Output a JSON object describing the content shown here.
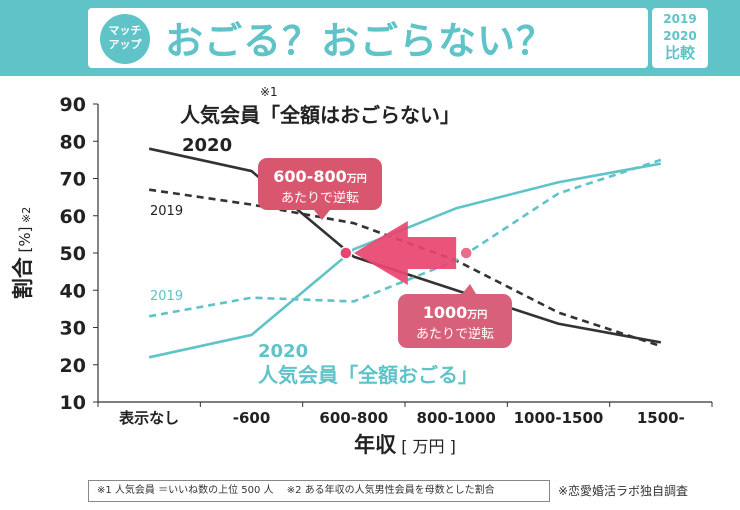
{
  "header": {
    "logo_line1": "マッチ",
    "logo_line2": "アップ",
    "title": "おごる？おごらない？",
    "year1": "2019",
    "year2": "2020",
    "compare": "比較"
  },
  "footnote": "※1 人気会員 ＝いいね数の上位 500 人　 ※2 ある年収の人気男性会員を母数とした割合",
  "source": "※恋愛婚活ラボ独自調査",
  "colors": {
    "black_series": "#333333",
    "teal_series": "#5fc3c8",
    "highlight": "#e8456f",
    "callout_pink": "#d9566f"
  },
  "chart_data": {
    "type": "line",
    "categories": [
      "表示なし",
      "-600",
      "600-800",
      "800-1000",
      "1000-1500",
      "1500-"
    ],
    "xlabel": "年収",
    "xlabel_unit": "[ 万円 ]",
    "ylabel": "割合",
    "ylabel_unit": "[%]",
    "ylabel_note": "※2",
    "ylim": [
      10,
      90
    ],
    "yticks": [
      10,
      20,
      30,
      40,
      50,
      60,
      70,
      80,
      90
    ],
    "groups": [
      {
        "title": "人気会員「全額はおごらない」",
        "title_note": "※1",
        "color": "#333333",
        "series": [
          {
            "name": "2020",
            "style": "solid",
            "values": [
              78,
              72,
              49,
              40,
              31,
              26
            ]
          },
          {
            "name": "2019",
            "style": "dashed",
            "values": [
              67,
              63,
              58,
              48,
              34,
              25
            ]
          }
        ]
      },
      {
        "title": "人気会員「全額おごる」",
        "color": "#5fc3c8",
        "series": [
          {
            "name": "2020",
            "style": "solid",
            "values": [
              22,
              28,
              51,
              62,
              69,
              74
            ]
          },
          {
            "name": "2019",
            "style": "dashed",
            "values": [
              33,
              38,
              37,
              48,
              66,
              75
            ]
          }
        ]
      }
    ],
    "annotations": [
      {
        "line1_main": "600-800",
        "line1_unit": "万円",
        "line2": "あたりで逆転",
        "point": {
          "category": "600-800",
          "value": 50
        }
      },
      {
        "line1_main": "1000",
        "line1_unit": "万円",
        "line2": "あたりで逆転",
        "point": {
          "category": "800-1000",
          "value": 50
        }
      }
    ]
  }
}
